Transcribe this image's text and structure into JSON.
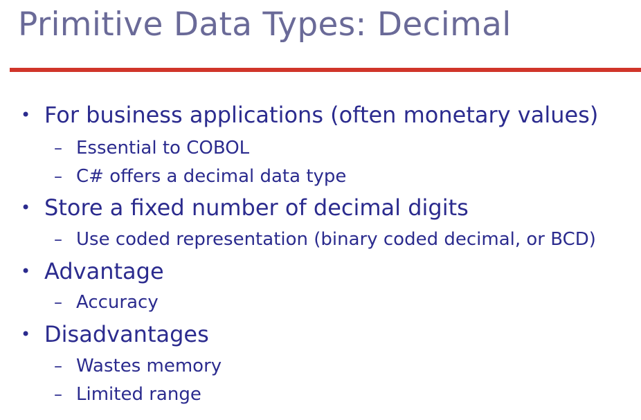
{
  "slide": {
    "title": "Primitive Data Types: Decimal",
    "accent_color": "#d0352a",
    "title_color": "#6a6a98",
    "text_color": "#2b2b8e",
    "bullet_marker": "•",
    "sub_marker": "–",
    "items": [
      {
        "text": "For business applications (often monetary values)",
        "subitems": [
          "Essential to COBOL",
          "C# offers a decimal data type"
        ]
      },
      {
        "text": "Store a fixed number of decimal digits",
        "subitems": [
          "Use coded representation (binary coded decimal, or BCD)"
        ]
      },
      {
        "text": "Advantage",
        "subitems": [
          "Accuracy"
        ]
      },
      {
        "text": "Disadvantages",
        "subitems": [
          "Wastes memory",
          "Limited range"
        ]
      }
    ]
  }
}
